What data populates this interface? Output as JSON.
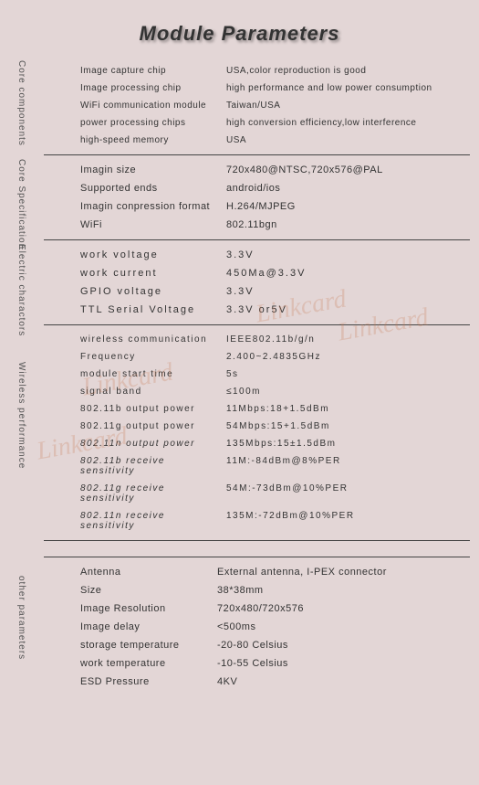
{
  "title": "Module Parameters",
  "watermarks": [
    "Linkcard",
    "Linkcard",
    "Linkcard",
    "Linkcard"
  ],
  "sections": {
    "core_components": {
      "vlabel": "Core components",
      "rows": [
        {
          "label": "Image capture chip",
          "value": "USA,color reproduction is good"
        },
        {
          "label": "Image processing chip",
          "value": "high performance and low power consumption"
        },
        {
          "label": "WiFi communication module",
          "value": "Taiwan/USA"
        },
        {
          "label": "power processing chips",
          "value": "high conversion efficiency,low interference"
        },
        {
          "label": "high-speed memory",
          "value": "USA"
        }
      ]
    },
    "core_spec": {
      "vlabel": "Core Specification",
      "rows": [
        {
          "label": "Imagin size",
          "value": "720x480@NTSC,720x576@PAL"
        },
        {
          "label": "Supported ends",
          "value": "android/ios"
        },
        {
          "label": "Imagin conpression format",
          "value": "H.264/MJPEG"
        },
        {
          "label": "WiFi",
          "value": "802.11bgn"
        }
      ]
    },
    "electric": {
      "vlabel": "Electric charactors",
      "rows": [
        {
          "label": "work voltage",
          "value": "3.3V"
        },
        {
          "label": "work current",
          "value": "450Ma@3.3V"
        },
        {
          "label": "GPIO voltage",
          "value": "3.3V"
        },
        {
          "label": "TTL Serial Voltage",
          "value": "3.3V or5V"
        }
      ]
    },
    "wireless": {
      "vlabel": "Wireless performance",
      "rows": [
        {
          "label": "wireless communication",
          "value": "IEEE802.11b/g/n",
          "noi": true
        },
        {
          "label": "Frequency",
          "value": "2.400~2.4835GHz",
          "noi": true
        },
        {
          "label": "module start time",
          "value": "5s",
          "noi": true
        },
        {
          "label": "signal band",
          "value": "≤100m",
          "noi": true
        },
        {
          "label": "802.11b output power",
          "value": "11Mbps:18+1.5dBm",
          "noi": true
        },
        {
          "label": "802.11g output power",
          "value": "54Mbps:15+1.5dBm",
          "noi": true
        },
        {
          "label": "802.11n output power",
          "value": "135Mbps:15±1.5dBm"
        },
        {
          "label": "802.11b receive sensitivity",
          "value": "11M:-84dBm@8%PER"
        },
        {
          "label": "802.11g receive sensitivity",
          "value": "54M:-73dBm@10%PER"
        },
        {
          "label": "802.11n receive sensitivity",
          "value": "135M:-72dBm@10%PER"
        }
      ]
    },
    "other": {
      "vlabel": "other parameters",
      "rows": [
        {
          "label": "Antenna",
          "value": "External antenna, I-PEX connector"
        },
        {
          "label": "Size",
          "value": "38*38mm"
        },
        {
          "label": "Image Resolution",
          "value": "720x480/720x576"
        },
        {
          "label": "Image delay",
          "value": "<500ms"
        },
        {
          "label": "storage temperature",
          "value": "-20-80 Celsius"
        },
        {
          "label": "work temperature",
          "value": "-10-55 Celsius"
        },
        {
          "label": "ESD Pressure",
          "value": "4KV"
        }
      ]
    }
  },
  "styling": {
    "background": "#e3d6d6",
    "text_color": "#333",
    "border_color": "#444",
    "watermark_color": "rgba(200,120,80,0.25)"
  }
}
